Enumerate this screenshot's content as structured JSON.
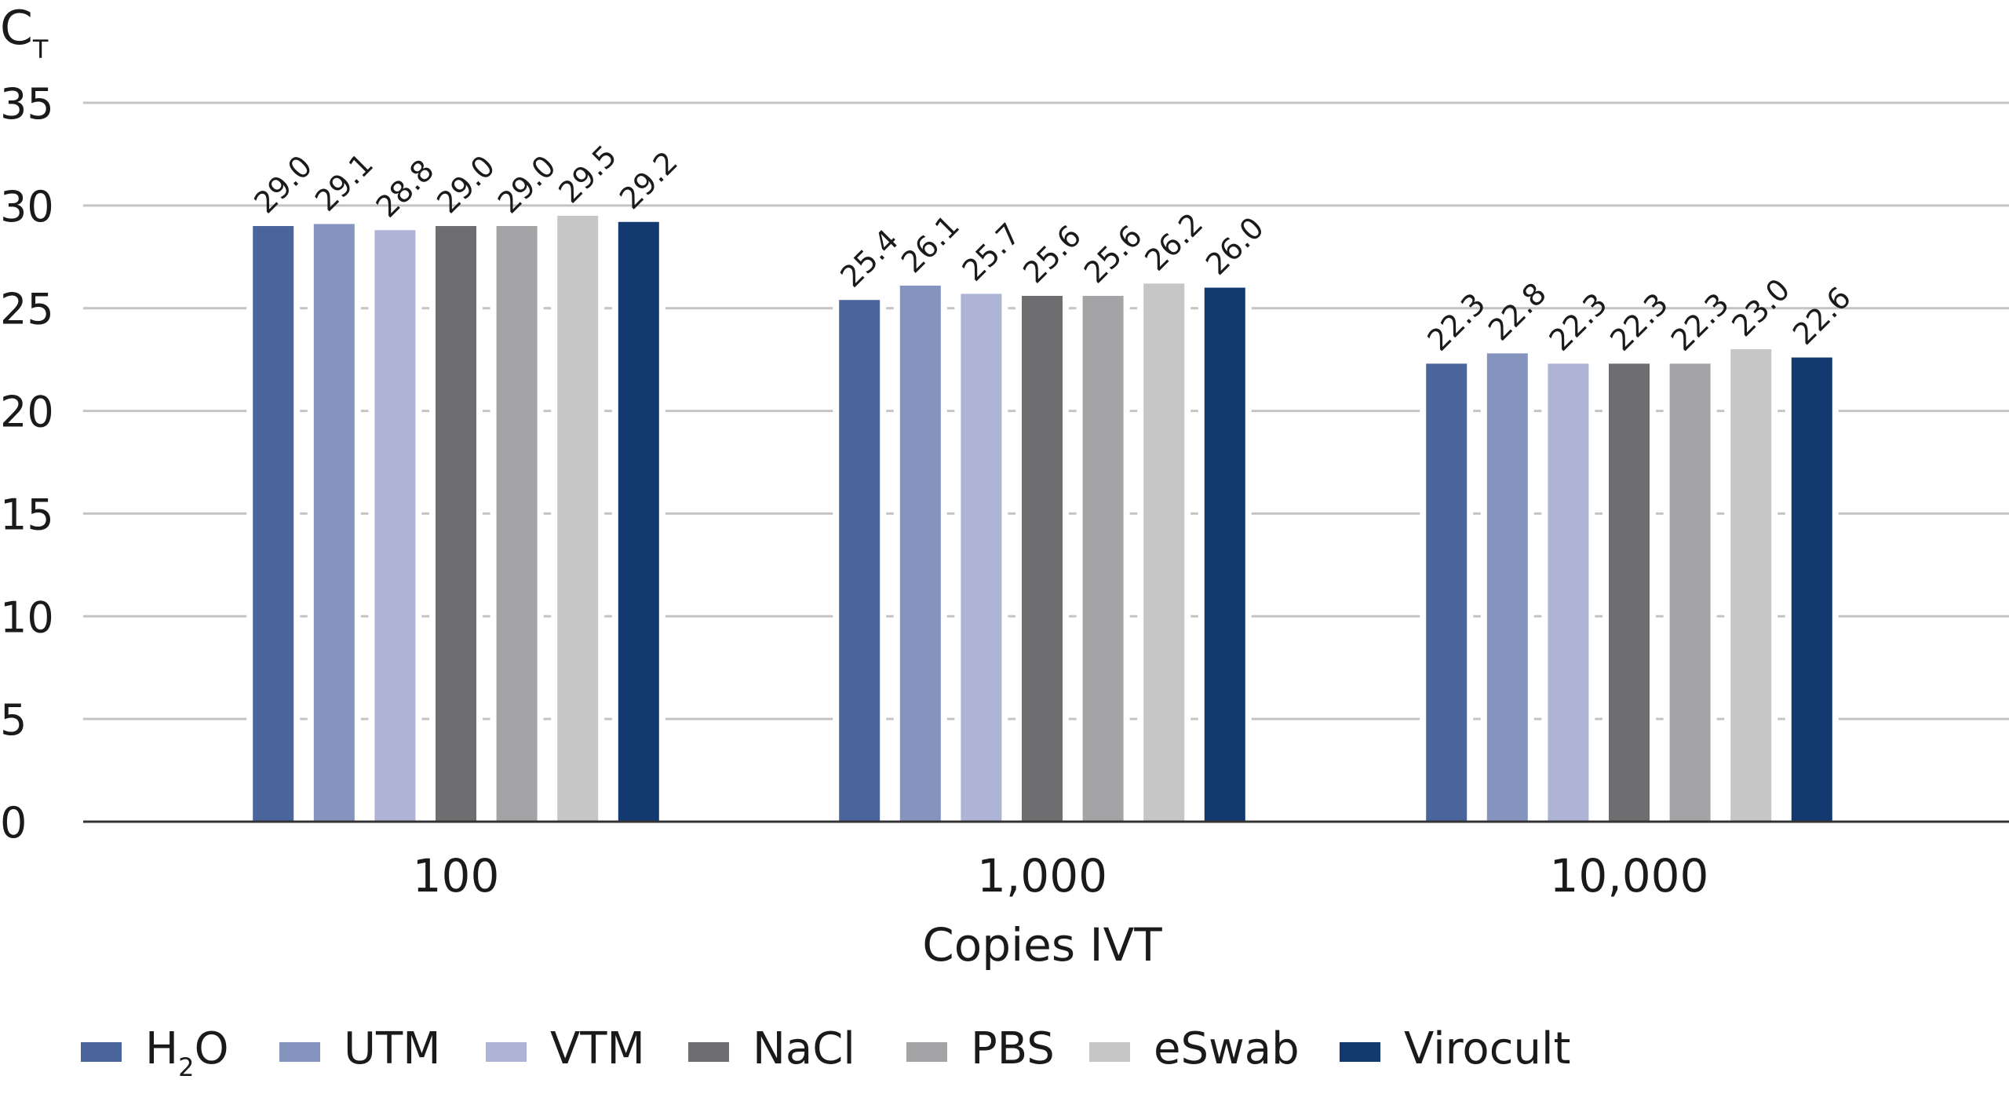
{
  "chart_data": {
    "type": "bar",
    "title": "",
    "ylabel": "C",
    "ylabel_sub": "T",
    "xlabel": "Copies IVT",
    "ylim": [
      0,
      35
    ],
    "yticks": [
      0,
      5,
      10,
      15,
      20,
      25,
      30,
      35
    ],
    "grid": true,
    "legend_position": "bottom",
    "categories": [
      "100",
      "1,000",
      "10,000"
    ],
    "series": [
      {
        "name": "H2O",
        "name_main": "H",
        "name_sub": "2",
        "name_tail": "O",
        "color": "#4a659c",
        "values": [
          29.0,
          25.4,
          22.3
        ]
      },
      {
        "name": "UTM",
        "color": "#8494bf",
        "values": [
          29.1,
          26.1,
          22.8
        ]
      },
      {
        "name": "VTM",
        "color": "#adb4d5",
        "values": [
          28.8,
          25.7,
          22.3
        ]
      },
      {
        "name": "NaCl",
        "color": "#6e6d70",
        "values": [
          29.0,
          25.6,
          22.3
        ]
      },
      {
        "name": "PBS",
        "color": "#a4a3a6",
        "values": [
          29.0,
          25.6,
          22.3
        ]
      },
      {
        "name": "eSwab",
        "color": "#c6c6c6",
        "values": [
          29.5,
          26.2,
          23.0
        ]
      },
      {
        "name": "Virocult",
        "color": "#123a70",
        "values": [
          29.2,
          26.0,
          22.6
        ]
      }
    ]
  }
}
